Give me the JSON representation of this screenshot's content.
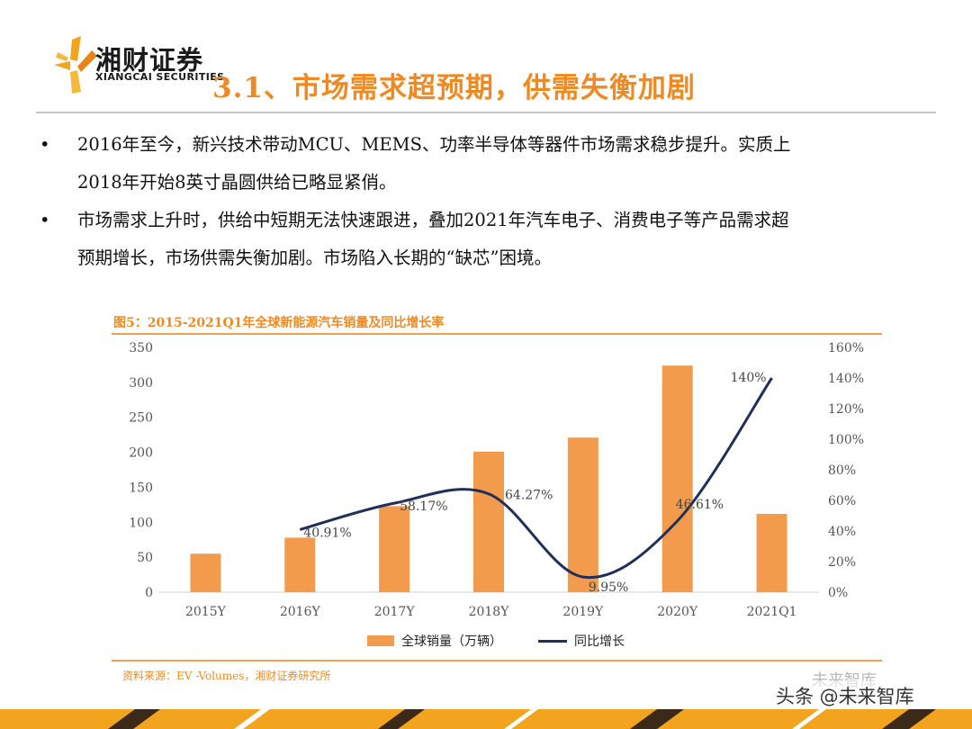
{
  "header": {
    "brand_cn": "湘财证券",
    "brand_en": "XIANGCAI SECURITIES",
    "title": "3.1、市场需求超预期，供需失衡加剧"
  },
  "bullets": [
    {
      "marker": "•",
      "lines": [
        "2016年至今，新兴技术带动MCU、MEMS、功率半导体等器件市场需求稳步提升。实质上",
        "2018年开始8英寸晶圆供给已略显紧俏。"
      ]
    },
    {
      "marker": "•",
      "lines": [
        "市场需求上升时，供给中短期无法快速跟进，叠加2021年汽车电子、消费电子等产品需求超",
        "预期增长，市场供需失衡加剧。市场陷入长期的“缺芯”困境。"
      ]
    }
  ],
  "figure": {
    "title": "图5：2015-2021Q1年全球新能源汽车销量及同比增长率",
    "source": "资料来源：EV -Volumes，湘财证券研究所"
  },
  "chart_data": {
    "type": "bar",
    "title": "图5：2015-2021Q1年全球新能源汽车销量及同比增长率",
    "categories": [
      "2015Y",
      "2016Y",
      "2017Y",
      "2018Y",
      "2019Y",
      "2020Y",
      "2021Q1"
    ],
    "series": [
      {
        "name": "全球销量（万辆）",
        "type": "bar",
        "axis": "left",
        "values": [
          55,
          78,
          123,
          201,
          221,
          324,
          112
        ]
      },
      {
        "name": "同比增长",
        "type": "line",
        "axis": "right",
        "smooth": true,
        "values": [
          null,
          40.91,
          58.17,
          64.27,
          9.95,
          46.61,
          140
        ]
      }
    ],
    "line_labels": [
      "",
      "40.91%",
      "58.17%",
      "64.27%",
      "9.95%",
      "46.61%",
      "140%"
    ],
    "y_left": {
      "range": [
        0,
        350
      ],
      "ticks": [
        "0",
        "50",
        "100",
        "150",
        "200",
        "250",
        "300",
        "350"
      ]
    },
    "y_right": {
      "range": [
        0,
        160
      ],
      "ticks": [
        "0%",
        "20%",
        "40%",
        "60%",
        "80%",
        "100%",
        "120%",
        "140%",
        "160%"
      ]
    },
    "legend": "bottom",
    "grid": false,
    "colors": {
      "bar": "#f29b4d",
      "line": "#1f2f5a",
      "accent": "#ef8a22"
    }
  },
  "legend": {
    "bar_label": "全球销量（万辆）",
    "line_label": "同比增长"
  },
  "watermark": {
    "text": "头条 @未来智库",
    "faint": "未来智库"
  }
}
